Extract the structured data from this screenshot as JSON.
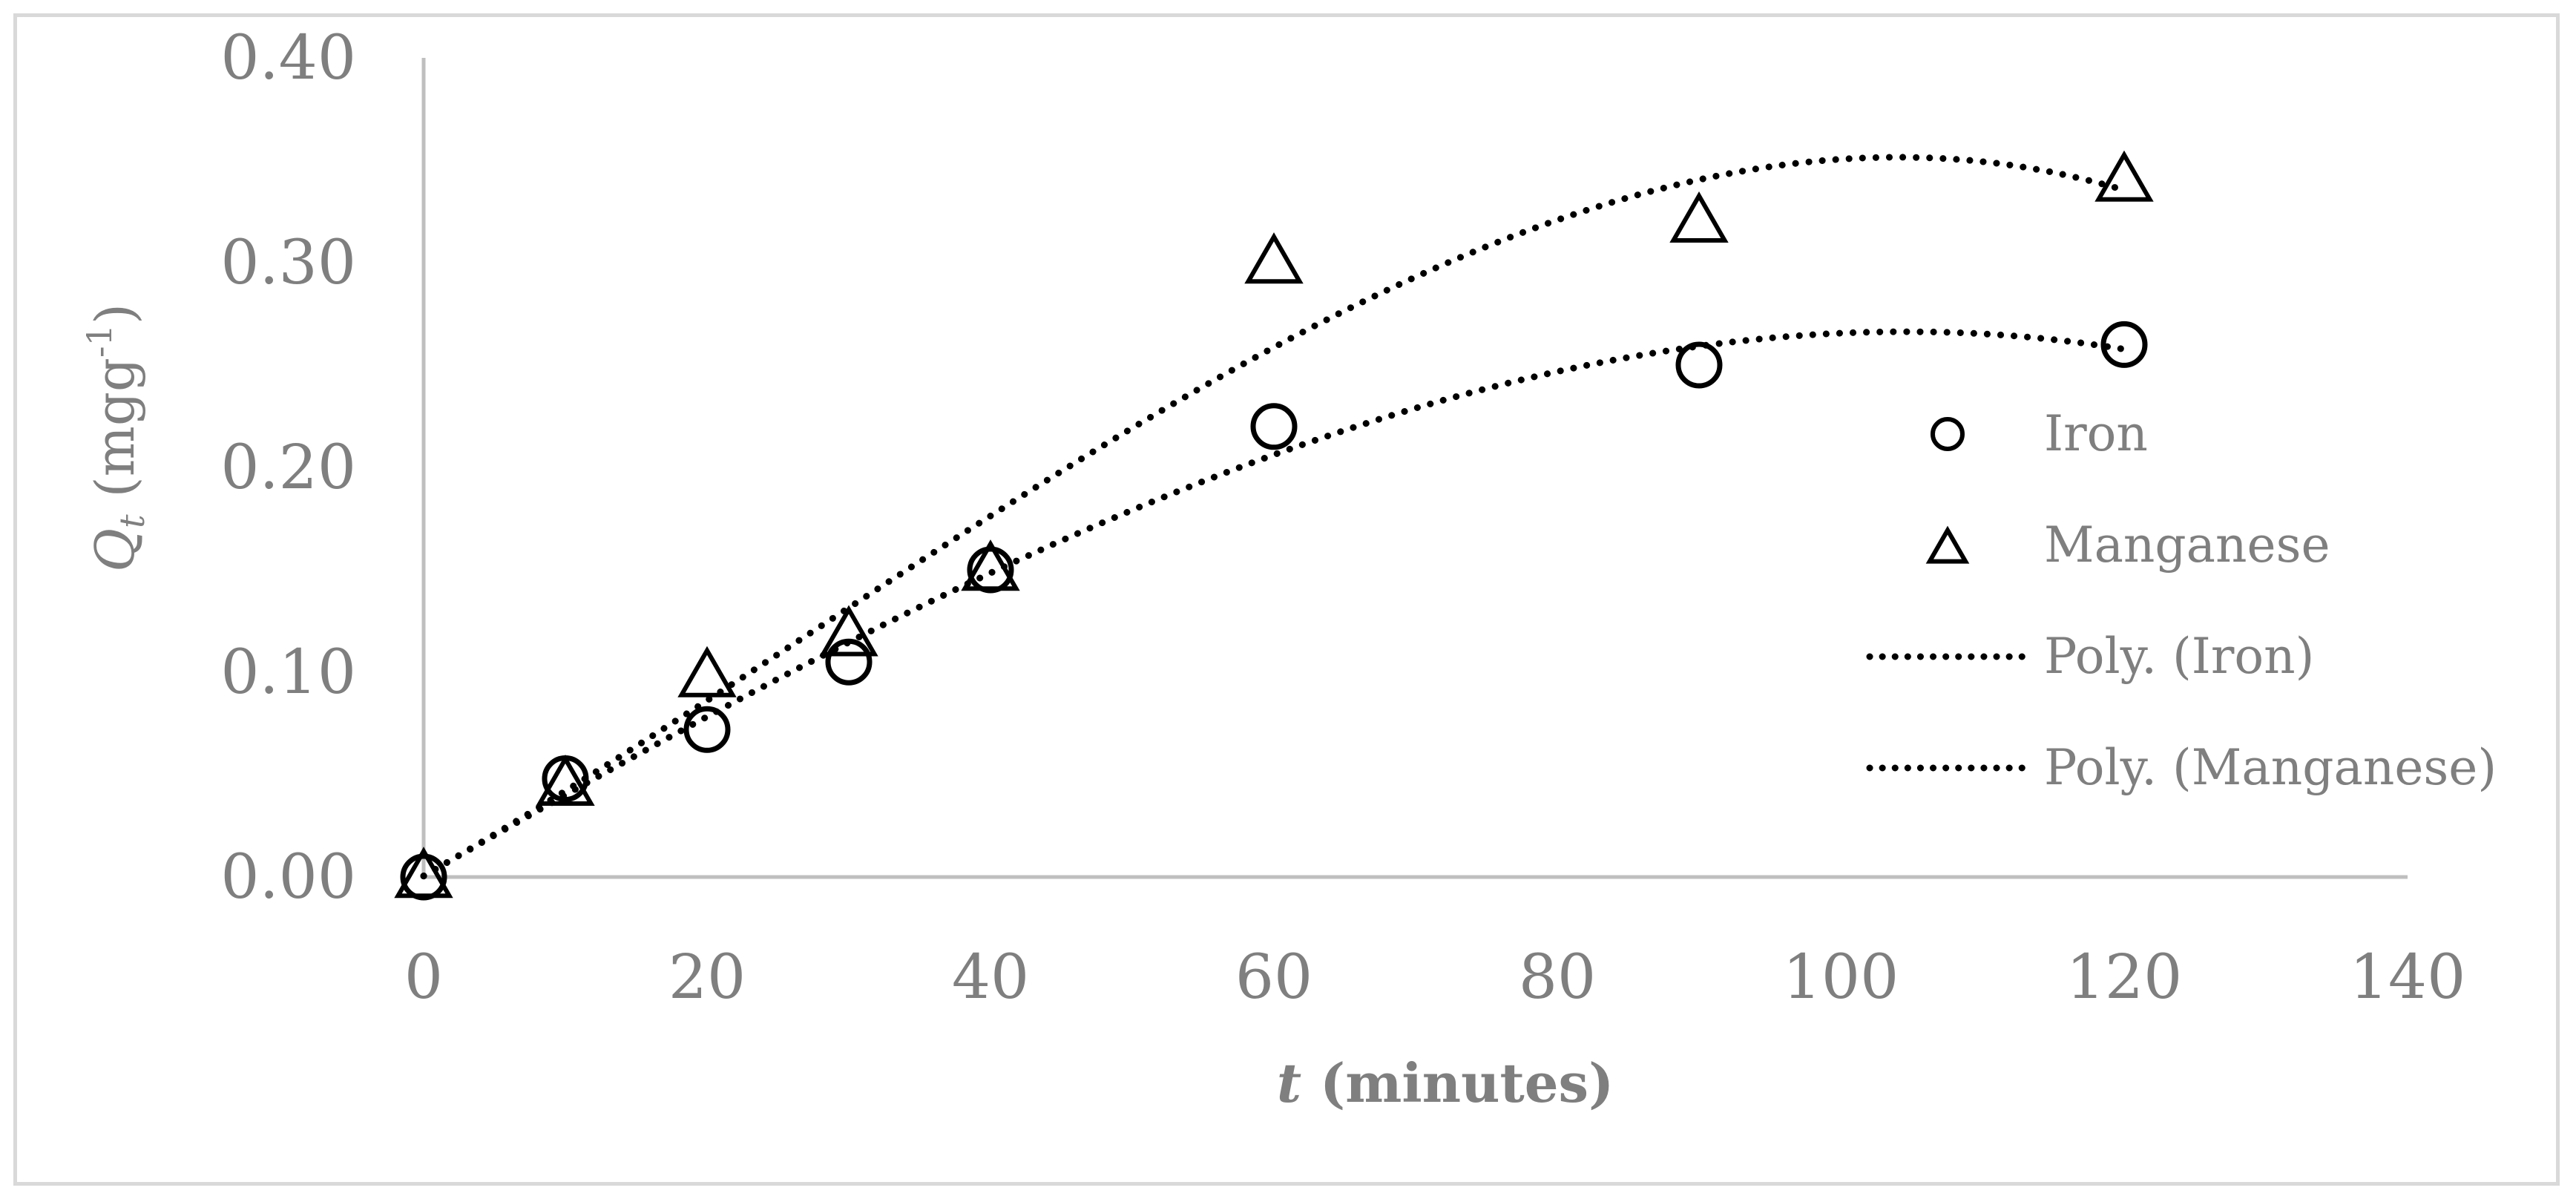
{
  "chart_data": {
    "type": "scatter",
    "x_axis": {
      "label_italic": "t",
      "label_rest": " (minutes)",
      "range": [
        0,
        140
      ],
      "ticks": [
        "0",
        "20",
        "40",
        "60",
        "80",
        "100",
        "120",
        "140"
      ]
    },
    "y_axis": {
      "label_symbol": "Q",
      "label_subscript": "t",
      "label_unit": " (mgg",
      "label_superscript": "-1",
      "label_close": ")",
      "range": [
        0,
        0.4
      ],
      "ticks": [
        "0.00",
        "0.10",
        "0.20",
        "0.30",
        "0.40"
      ]
    },
    "grid": false,
    "legend_position": "right",
    "series": [
      {
        "name": "Iron",
        "marker": "circle",
        "x": [
          0,
          10,
          20,
          30,
          40,
          60,
          90,
          120
        ],
        "y": [
          0.0,
          0.048,
          0.072,
          0.105,
          0.15,
          0.22,
          0.25,
          0.26
        ]
      },
      {
        "name": "Manganese",
        "marker": "triangle",
        "x": [
          0,
          10,
          20,
          30,
          40,
          60,
          90,
          120
        ],
        "y": [
          0.0,
          0.045,
          0.098,
          0.118,
          0.15,
          0.3,
          0.32,
          0.34
        ]
      }
    ],
    "trendlines": [
      {
        "name": "Poly. (Iron)",
        "of": "Iron",
        "type": "polynomial",
        "style": "dotted"
      },
      {
        "name": "Poly. (Manganese)",
        "of": "Manganese",
        "type": "polynomial",
        "style": "dotted"
      }
    ]
  },
  "colors": {
    "axis": "#bfbfbf",
    "text": "#7f7f7f",
    "marker": "#000000",
    "border": "#d9d9d9"
  }
}
